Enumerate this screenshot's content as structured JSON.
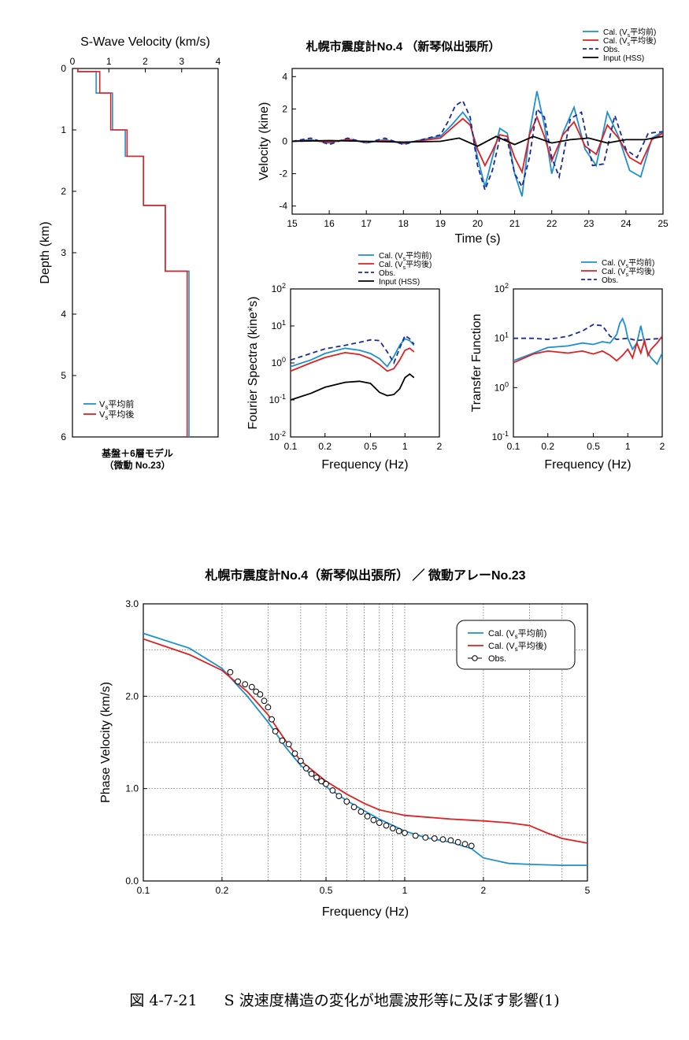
{
  "chart_data": [
    {
      "id": "vs_profile",
      "type": "line",
      "title": "S-Wave Velocity (km/s)",
      "ylabel": "Depth (km)",
      "xlim": [
        0,
        4
      ],
      "ylim": [
        0,
        6
      ],
      "xticks": [
        "0",
        "1",
        "2",
        "3",
        "4"
      ],
      "yticks": [
        "0",
        "1",
        "2",
        "3",
        "4",
        "5",
        "6"
      ],
      "note_lines": [
        "基盤＋6層モデル",
        "（微動 No.23）"
      ],
      "legend_position": "bottom-left",
      "series": [
        {
          "name": "Vs平均前",
          "color": "#1e90d0",
          "x": [
            0.15,
            0.15,
            0.65,
            0.65,
            1.1,
            1.1,
            1.45,
            1.45,
            1.95,
            1.95,
            2.55,
            2.55,
            3.2,
            3.2
          ],
          "y": [
            0,
            0.05,
            0.05,
            0.4,
            0.4,
            1.0,
            1.0,
            1.43,
            1.43,
            2.23,
            2.23,
            3.3,
            3.3,
            6
          ]
        },
        {
          "name": "Vs平均後",
          "color": "#e02020",
          "x": [
            0.15,
            0.15,
            0.75,
            0.75,
            1.05,
            1.05,
            1.5,
            1.5,
            1.95,
            1.95,
            2.55,
            2.55,
            3.15,
            3.15
          ],
          "y": [
            0,
            0.05,
            0.05,
            0.4,
            0.4,
            1.0,
            1.0,
            1.43,
            1.43,
            2.23,
            2.23,
            3.3,
            3.3,
            6
          ]
        }
      ]
    },
    {
      "id": "velocity_waveform",
      "type": "line",
      "title": "札幌市震度計No.4 （新琴似出張所）",
      "xlabel": "Time (s)",
      "ylabel": "Velocity (kine)",
      "xlim": [
        15,
        25
      ],
      "ylim": [
        -4.5,
        4.5
      ],
      "xticks": [
        "15",
        "16",
        "17",
        "18",
        "19",
        "20",
        "21",
        "22",
        "23",
        "24",
        "25"
      ],
      "yticks": [
        "-4",
        "-2",
        "0",
        "2",
        "4"
      ],
      "legend_position": "top-right",
      "series": [
        {
          "name": "Cal. (Vs平均前)",
          "color": "#1e90d0",
          "style": "solid",
          "x": [
            15,
            15.5,
            16,
            16.5,
            17,
            17.5,
            18,
            18.5,
            19,
            19.3,
            19.6,
            19.8,
            20,
            20.2,
            20.4,
            20.6,
            20.8,
            21,
            21.2,
            21.4,
            21.6,
            21.8,
            22,
            22.3,
            22.6,
            22.9,
            23.2,
            23.5,
            23.8,
            24.1,
            24.4,
            24.7,
            25
          ],
          "y": [
            0,
            0.1,
            -0.1,
            0.15,
            -0.1,
            0.1,
            -0.15,
            0.1,
            0.3,
            1.0,
            1.8,
            1.2,
            -1.0,
            -2.8,
            -1.0,
            0.8,
            0.5,
            -2.0,
            -3.4,
            0.5,
            3.1,
            1.0,
            -2.0,
            0.5,
            2.1,
            -0.5,
            -1.5,
            1.8,
            0.3,
            -1.8,
            -2.2,
            0.2,
            0.6
          ]
        },
        {
          "name": "Cal. (Vs平均後)",
          "color": "#e02020",
          "style": "solid",
          "x": [
            15,
            15.5,
            16,
            16.5,
            17,
            17.5,
            18,
            18.5,
            19,
            19.3,
            19.6,
            19.8,
            20,
            20.2,
            20.4,
            20.6,
            20.8,
            21,
            21.2,
            21.4,
            21.6,
            21.8,
            22,
            22.3,
            22.6,
            22.9,
            23.2,
            23.5,
            23.8,
            24.1,
            24.4,
            24.7,
            25
          ],
          "y": [
            0,
            0.05,
            -0.05,
            0.1,
            -0.05,
            0.05,
            -0.1,
            0.05,
            0.2,
            0.8,
            1.4,
            1.0,
            -0.5,
            -1.5,
            -0.6,
            0.4,
            0.3,
            -1.0,
            -1.9,
            0.4,
            1.5,
            0.3,
            -1.2,
            0.4,
            1.2,
            -0.3,
            -0.8,
            1.0,
            0.2,
            -1.0,
            -1.4,
            0.1,
            0.5
          ]
        },
        {
          "name": "Obs.",
          "color": "#1a2a9a",
          "style": "dashed",
          "x": [
            15,
            15.5,
            16,
            16.5,
            17,
            17.5,
            18,
            18.5,
            19,
            19.2,
            19.4,
            19.6,
            19.8,
            20,
            20.2,
            20.4,
            20.6,
            20.8,
            21,
            21.2,
            21.4,
            21.6,
            21.8,
            22,
            22.2,
            22.5,
            22.8,
            23.1,
            23.4,
            23.7,
            24,
            24.3,
            24.6,
            25
          ],
          "y": [
            0,
            0.2,
            -0.2,
            0.2,
            -0.1,
            0.2,
            -0.2,
            0.1,
            0.4,
            1.2,
            2.2,
            2.5,
            1.5,
            -1.5,
            -3.0,
            -1.8,
            0.2,
            0.1,
            -2.0,
            -2.8,
            -1.0,
            2.0,
            1.5,
            -1.0,
            -2.2,
            1.4,
            1.8,
            -1.5,
            -1.4,
            1.6,
            -0.5,
            -1.0,
            0.5,
            0.6
          ]
        },
        {
          "name": "Input (HSS)",
          "color": "#000000",
          "style": "solid",
          "x": [
            15,
            16,
            17,
            18,
            19,
            19.5,
            20,
            20.5,
            21,
            21.5,
            22,
            22.5,
            23,
            23.5,
            24,
            24.5,
            25
          ],
          "y": [
            0,
            0.05,
            0,
            -0.05,
            0,
            0.2,
            -0.3,
            0.3,
            -0.2,
            0.3,
            -0.1,
            0.1,
            0.2,
            -0.1,
            0.1,
            0.1,
            0.3
          ]
        }
      ]
    },
    {
      "id": "fourier_spectra",
      "type": "line",
      "xlabel": "Frequency (Hz)",
      "ylabel": "Fourier Spectra (kine*s)",
      "log_x": true,
      "log_y": true,
      "xlim": [
        0.1,
        2
      ],
      "ylim": [
        0.01,
        100
      ],
      "xticks": [
        "0.1",
        "0.2",
        "0.5",
        "1",
        "2"
      ],
      "yticks": [
        "10-2",
        "10-1",
        "100",
        "101",
        "102"
      ],
      "legend_position": "top",
      "series": [
        {
          "name": "Cal. (Vs平均前)",
          "color": "#1e90d0",
          "style": "solid",
          "x": [
            0.1,
            0.15,
            0.2,
            0.3,
            0.4,
            0.5,
            0.6,
            0.7,
            0.8,
            0.9,
            1.0,
            1.1,
            1.2
          ],
          "y": [
            0.8,
            1.2,
            1.8,
            2.5,
            2.2,
            1.8,
            1.3,
            0.8,
            1.5,
            3.0,
            4.5,
            4.0,
            3.0
          ]
        },
        {
          "name": "Cal. (Vs平均後)",
          "color": "#e02020",
          "style": "solid",
          "x": [
            0.1,
            0.15,
            0.2,
            0.3,
            0.4,
            0.5,
            0.6,
            0.7,
            0.8,
            0.9,
            1.0,
            1.1,
            1.2
          ],
          "y": [
            0.6,
            1.0,
            1.4,
            1.9,
            1.7,
            1.3,
            0.9,
            0.6,
            0.7,
            1.2,
            2.2,
            2.5,
            2.0
          ]
        },
        {
          "name": "Obs.",
          "color": "#1a2a9a",
          "style": "dashed",
          "x": [
            0.1,
            0.15,
            0.2,
            0.3,
            0.4,
            0.5,
            0.6,
            0.7,
            0.8,
            0.9,
            1.0,
            1.1,
            1.2
          ],
          "y": [
            1.2,
            1.8,
            2.4,
            3.0,
            3.6,
            4.2,
            4.0,
            2.0,
            1.0,
            2.5,
            5.5,
            4.5,
            3.2
          ]
        },
        {
          "name": "Input (HSS)",
          "color": "#000000",
          "style": "solid",
          "x": [
            0.1,
            0.15,
            0.2,
            0.3,
            0.4,
            0.5,
            0.6,
            0.7,
            0.8,
            0.9,
            1.0,
            1.1,
            1.2
          ],
          "y": [
            0.1,
            0.15,
            0.22,
            0.3,
            0.32,
            0.28,
            0.16,
            0.13,
            0.14,
            0.2,
            0.4,
            0.5,
            0.4
          ]
        }
      ]
    },
    {
      "id": "transfer_function",
      "type": "line",
      "xlabel": "Frequency (Hz)",
      "ylabel": "Transfer Function",
      "log_x": true,
      "log_y": true,
      "xlim": [
        0.1,
        2
      ],
      "ylim": [
        0.1,
        100
      ],
      "xticks": [
        "0.1",
        "0.2",
        "0.5",
        "1",
        "2"
      ],
      "yticks": [
        "10-1",
        "100",
        "101",
        "102"
      ],
      "legend_position": "top-right",
      "series": [
        {
          "name": "Cal. (Vs平均前)",
          "color": "#1e90d0",
          "style": "solid",
          "x": [
            0.1,
            0.15,
            0.2,
            0.3,
            0.4,
            0.5,
            0.6,
            0.7,
            0.8,
            0.85,
            0.9,
            0.95,
            1.0,
            1.1,
            1.2,
            1.3,
            1.4,
            1.5,
            1.6,
            1.8,
            2.0
          ],
          "y": [
            3.5,
            5.0,
            6.5,
            7.0,
            8.0,
            7.5,
            8.5,
            8.0,
            12.0,
            20.0,
            25.0,
            18.0,
            10.0,
            6.0,
            8.0,
            18.0,
            8.0,
            5.0,
            4.0,
            3.0,
            5.0
          ]
        },
        {
          "name": "Cal. (Vs平均後)",
          "color": "#e02020",
          "style": "solid",
          "x": [
            0.1,
            0.15,
            0.2,
            0.3,
            0.4,
            0.5,
            0.6,
            0.7,
            0.8,
            0.9,
            1.0,
            1.1,
            1.2,
            1.3,
            1.4,
            1.5,
            1.6,
            1.8,
            2.0
          ],
          "y": [
            3.2,
            4.8,
            5.5,
            5.0,
            5.5,
            4.8,
            5.5,
            4.5,
            3.5,
            4.5,
            6.0,
            4.0,
            8.0,
            5.0,
            9.0,
            4.5,
            6.0,
            8.0,
            11.0
          ]
        },
        {
          "name": "Obs.",
          "color": "#1a2a9a",
          "style": "dashed",
          "x": [
            0.1,
            0.15,
            0.2,
            0.3,
            0.4,
            0.5,
            0.6,
            0.7,
            0.8,
            1.0,
            1.2,
            1.5,
            2.0
          ],
          "y": [
            10.0,
            10.0,
            9.5,
            11.0,
            14.0,
            19.0,
            18.0,
            11.0,
            9.5,
            10.0,
            9.0,
            9.5,
            10.0
          ]
        }
      ]
    },
    {
      "id": "dispersion_curve",
      "type": "line",
      "title": "札幌市震度計No.4（新琴似出張所） ／ 微動アレーNo.23",
      "xlabel": "Frequency (Hz)",
      "ylabel": "Phase Velocity (km/s)",
      "log_x": true,
      "xlim": [
        0.1,
        5
      ],
      "ylim": [
        0,
        3
      ],
      "xticks": [
        "0.1",
        "0.2",
        "0.5",
        "1",
        "2",
        "5"
      ],
      "yticks": [
        "0.0",
        "1.0",
        "2.0",
        "3.0"
      ],
      "grid": true,
      "legend_position": "top-right",
      "series": [
        {
          "name": "Cal. (Vs平均前)",
          "color": "#1e90d0",
          "style": "solid",
          "x": [
            0.1,
            0.15,
            0.2,
            0.25,
            0.3,
            0.35,
            0.4,
            0.5,
            0.6,
            0.7,
            0.8,
            1.0,
            1.2,
            1.5,
            1.8,
            2.0,
            2.5,
            3.0,
            4.0,
            5.0
          ],
          "y": [
            2.68,
            2.52,
            2.3,
            2.0,
            1.72,
            1.45,
            1.25,
            1.02,
            0.87,
            0.76,
            0.67,
            0.54,
            0.47,
            0.42,
            0.35,
            0.25,
            0.19,
            0.18,
            0.17,
            0.17
          ]
        },
        {
          "name": "Cal. (Vs平均後)",
          "color": "#e02020",
          "style": "solid",
          "x": [
            0.1,
            0.15,
            0.2,
            0.25,
            0.3,
            0.35,
            0.4,
            0.5,
            0.6,
            0.7,
            0.8,
            1.0,
            1.5,
            2.0,
            2.5,
            3.0,
            3.5,
            4.0,
            5.0
          ],
          "y": [
            2.62,
            2.45,
            2.28,
            2.05,
            1.8,
            1.52,
            1.3,
            1.08,
            0.94,
            0.84,
            0.77,
            0.71,
            0.67,
            0.65,
            0.63,
            0.6,
            0.52,
            0.46,
            0.41
          ]
        },
        {
          "name": "Obs.",
          "color": "#000000",
          "style": "markers",
          "x": [
            0.215,
            0.23,
            0.245,
            0.26,
            0.27,
            0.28,
            0.29,
            0.3,
            0.31,
            0.32,
            0.34,
            0.36,
            0.38,
            0.4,
            0.42,
            0.44,
            0.46,
            0.48,
            0.5,
            0.53,
            0.56,
            0.6,
            0.64,
            0.68,
            0.72,
            0.76,
            0.8,
            0.85,
            0.9,
            0.95,
            1.0,
            1.1,
            1.2,
            1.3,
            1.4,
            1.5,
            1.6,
            1.7,
            1.8
          ],
          "y": [
            2.26,
            2.16,
            2.13,
            2.1,
            2.05,
            2.02,
            1.95,
            1.88,
            1.75,
            1.62,
            1.52,
            1.48,
            1.38,
            1.3,
            1.22,
            1.16,
            1.12,
            1.08,
            1.05,
            0.98,
            0.92,
            0.86,
            0.8,
            0.75,
            0.7,
            0.66,
            0.63,
            0.6,
            0.57,
            0.54,
            0.52,
            0.49,
            0.47,
            0.46,
            0.45,
            0.44,
            0.42,
            0.4,
            0.38
          ]
        }
      ]
    }
  ],
  "caption": {
    "figure_no": "図 4-7-21",
    "text": "S 波速度構造の変化が地震波形等に及ぼす影響(1)"
  }
}
